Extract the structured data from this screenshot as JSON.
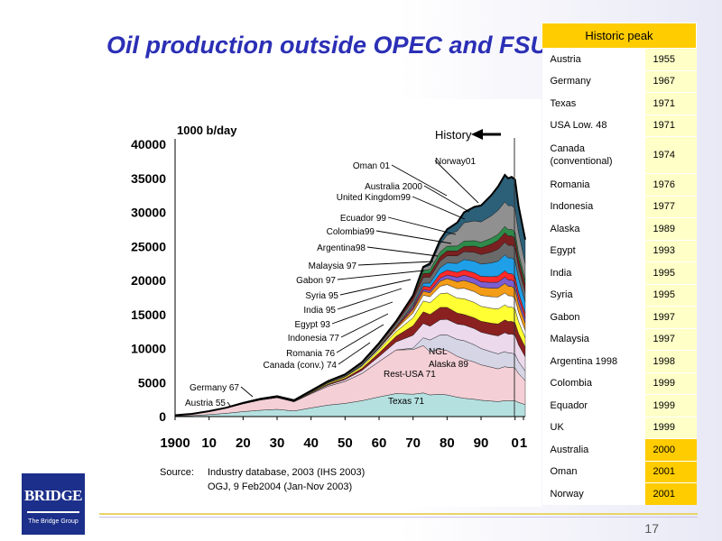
{
  "title": "Oil production outside OPEC and FSU",
  "chart_data": {
    "type": "area",
    "ylabel": "1000 b/day",
    "ylim": [
      0,
      40000
    ],
    "yticks": [
      "0",
      "5000",
      "10000",
      "15000",
      "20000",
      "25000",
      "30000",
      "35000",
      "40000"
    ],
    "xticks": [
      "1900",
      "10",
      "20",
      "30",
      "40",
      "50",
      "60",
      "70",
      "80",
      "90",
      "0",
      "1"
    ],
    "xlim": [
      1900,
      2003
    ],
    "history_label": "History",
    "total_production": {
      "x": [
        1900,
        1905,
        1910,
        1915,
        1920,
        1925,
        1930,
        1935,
        1940,
        1945,
        1950,
        1955,
        1960,
        1965,
        1970,
        1973,
        1975,
        1978,
        1980,
        1983,
        1985,
        1988,
        1990,
        1993,
        1995,
        1997,
        1998,
        1999,
        2000,
        2001,
        2003
      ],
      "y": [
        200,
        400,
        800,
        1300,
        2000,
        2600,
        3000,
        2400,
        3800,
        5200,
        6200,
        8000,
        10800,
        14000,
        17800,
        22000,
        22500,
        26000,
        27500,
        28500,
        30000,
        30800,
        31000,
        32500,
        33800,
        35500,
        35000,
        35200,
        34800,
        31000,
        26000
      ]
    },
    "series": [
      {
        "name": "Texas",
        "color": "#b5e0e0"
      },
      {
        "name": "Rest-USA",
        "color": "#f4cfd6"
      },
      {
        "name": "Alaska",
        "color": "#d5d5e6"
      },
      {
        "name": "NGL",
        "color": "#ecd9ec"
      },
      {
        "name": "Canada",
        "color": "#8b2020"
      },
      {
        "name": "Indonesia",
        "color": "#ffff33"
      },
      {
        "name": "Egypt",
        "color": "#ffffff"
      },
      {
        "name": "India",
        "color": "#f39c18"
      },
      {
        "name": "Syria",
        "color": "#7c5ed0"
      },
      {
        "name": "Gabon",
        "color": "#ff2a2a"
      },
      {
        "name": "Malaysia",
        "color": "#1f9fe8"
      },
      {
        "name": "Argentina",
        "color": "#6a6a6a"
      },
      {
        "name": "Colombia",
        "color": "#7a2020"
      },
      {
        "name": "Ecuador",
        "color": "#2e8b4a"
      },
      {
        "name": "United Kingdom",
        "color": "#909090"
      },
      {
        "name": "Norway",
        "color": "#2c5f78"
      }
    ],
    "annotations": [
      "Oman 01",
      "Norway01",
      "Australia 2000",
      "United Kingdom99",
      "Ecuador 99",
      "Colombia99",
      "Argentina98",
      "Malaysia 97",
      "Gabon 97",
      "Syria 95",
      "India 95",
      "Egypt 93",
      "Indonesia 77",
      "Romania 76",
      "Canada (conv.) 74",
      "Germany 67",
      "Austria 55",
      "NGL",
      "Alaska 89",
      "Rest-USA 71",
      "Texas 71"
    ],
    "source_label": "Source:",
    "source_lines": [
      "Industry database, 2003 (IHS 2003)",
      "OGJ, 9 Feb2004 (Jan-Nov 2003)"
    ]
  },
  "table": {
    "header": "Historic peak",
    "rows": [
      {
        "country": "Austria",
        "year": "1955"
      },
      {
        "country": "Germany",
        "year": "1967"
      },
      {
        "country": "Texas",
        "year": "1971"
      },
      {
        "country": "USA Low. 48",
        "year": "1971"
      },
      {
        "country": "Canada (conventional)",
        "year": "1974"
      },
      {
        "country": "Romania",
        "year": "1976"
      },
      {
        "country": "Indonesia",
        "year": "1977"
      },
      {
        "country": "Alaska",
        "year": "1989"
      },
      {
        "country": "Egypt",
        "year": "1993"
      },
      {
        "country": "India",
        "year": "1995"
      },
      {
        "country": "Syria",
        "year": "1995"
      },
      {
        "country": "Gabon",
        "year": "1997"
      },
      {
        "country": "Malaysia",
        "year": "1997"
      },
      {
        "country": "Argentina 1998",
        "year": "1998"
      },
      {
        "country": "Colombia",
        "year": "1999"
      },
      {
        "country": "Equador",
        "year": "1999"
      },
      {
        "country": "UK",
        "year": "1999"
      },
      {
        "country": "Australia",
        "year": "2000"
      },
      {
        "country": "Oman",
        "year": "2001"
      },
      {
        "country": "Norway",
        "year": "2001"
      }
    ]
  },
  "logo": {
    "text": "BRIDGE",
    "subtext": "The Bridge Group"
  },
  "page_number": "17"
}
